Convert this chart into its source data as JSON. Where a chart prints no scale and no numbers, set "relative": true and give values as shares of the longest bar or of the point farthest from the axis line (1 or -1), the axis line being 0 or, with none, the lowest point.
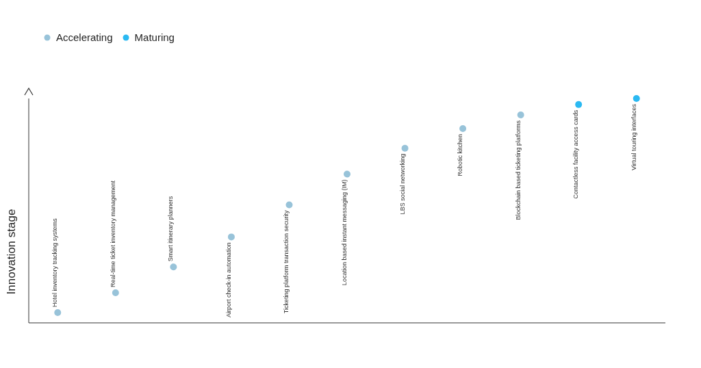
{
  "chart_data": {
    "type": "scatter",
    "ylabel": "Innovation stage",
    "relative": true,
    "legend": "top left",
    "marker": "circle",
    "grid": false,
    "categories": [
      "Hotel inventory tracking systems",
      "Real-time ticket inventory management",
      "Smart itinerary planners",
      "Airport check-in automation",
      "Ticketing platform transaction security",
      "Location based instant messaging (IM)",
      "LBS social networking",
      "Robotic kitchen",
      "Blockchain based ticketing platforms",
      "Contactless facility access cards",
      "Virtual touring interfaces"
    ],
    "series": [
      {
        "name": "Accelerating",
        "color": "#98c3d9",
        "values": [
          0.046,
          0.134,
          0.249,
          0.383,
          0.526,
          0.663,
          0.778,
          0.866,
          0.927,
          null,
          null
        ]
      },
      {
        "name": "Maturing",
        "color": "#2ab9f2",
        "values": [
          null,
          null,
          null,
          null,
          null,
          null,
          null,
          null,
          null,
          0.973,
          1
        ]
      }
    ]
  }
}
